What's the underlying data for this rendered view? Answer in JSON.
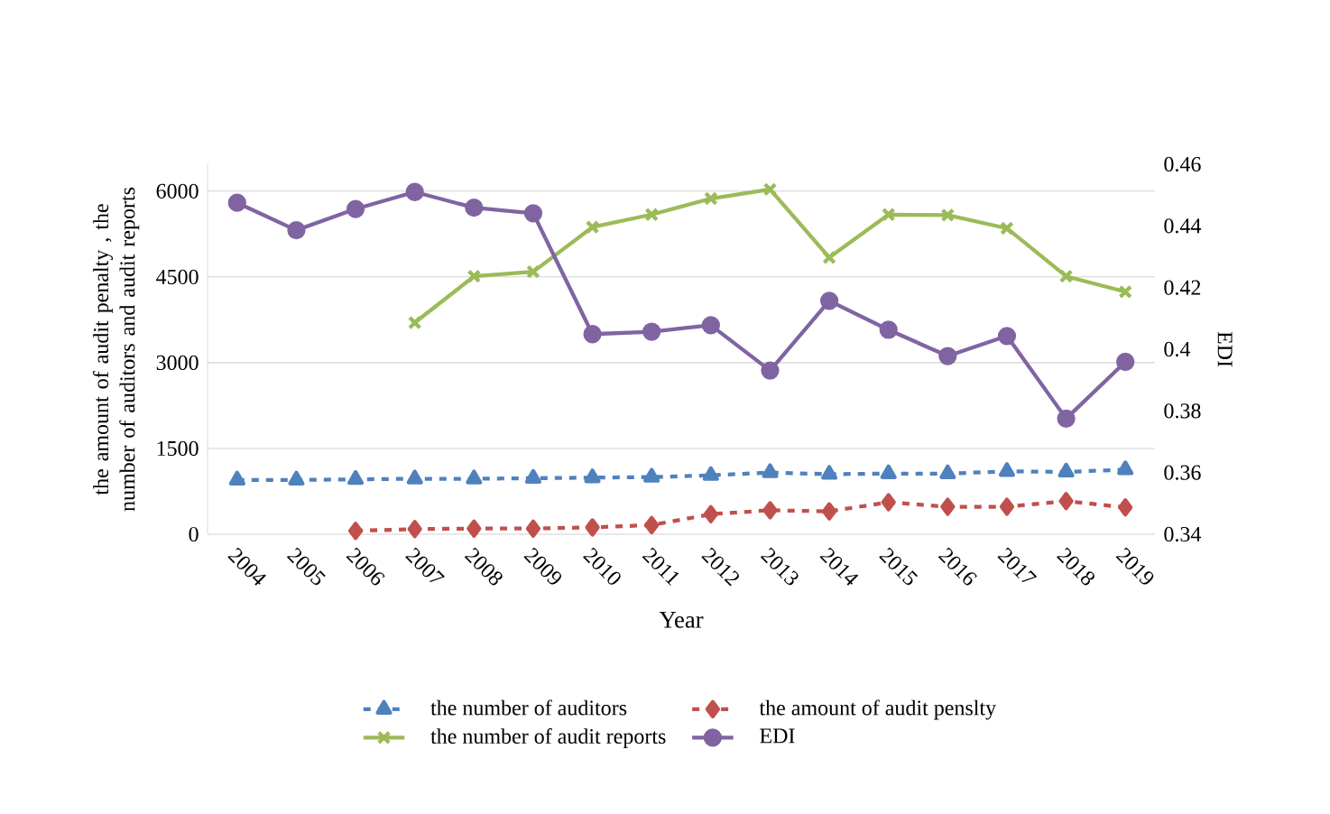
{
  "chart_data": {
    "type": "line",
    "categories": [
      "2004",
      "2005",
      "2006",
      "2007",
      "2008",
      "2009",
      "2010",
      "2011",
      "2012",
      "2013",
      "2014",
      "2015",
      "2016",
      "2017",
      "2018",
      "2019"
    ],
    "xlabel": "Year",
    "ylabel": "the amount of audit penalty , the number of auditors and audit reports",
    "y2label": "EDI",
    "ylim": [
      0,
      6470
    ],
    "yticks": [
      0,
      1500,
      3000,
      4500,
      6000
    ],
    "y2lim": [
      0.34,
      0.46
    ],
    "y2ticks": [
      0.34,
      0.36,
      0.38,
      0.4,
      0.42,
      0.44,
      0.46
    ],
    "grid": "y",
    "legend": "bottom",
    "series": [
      {
        "name": "the number of auditors",
        "color": "#4f81bd",
        "marker": "triangle",
        "line_style": "dashed",
        "values": [
          950,
          950,
          960,
          970,
          970,
          980,
          990,
          1000,
          1030,
          1080,
          1050,
          1060,
          1060,
          1100,
          1090,
          1130
        ]
      },
      {
        "name": "the amount of audit penslty",
        "color": "#c0504d",
        "marker": "diamond",
        "line_style": "dashed",
        "values": [
          null,
          null,
          60,
          90,
          100,
          100,
          120,
          160,
          350,
          420,
          400,
          560,
          480,
          480,
          580,
          470
        ]
      },
      {
        "name": "the number of audit reports",
        "color": "#9bbb59",
        "marker": "cross",
        "line_style": "solid",
        "values": [
          null,
          null,
          null,
          3700,
          4510,
          4590,
          5370,
          5590,
          5870,
          6030,
          4840,
          5590,
          5580,
          5350,
          4510,
          4240
        ]
      },
      {
        "name": "EDI",
        "color": "#8064a2",
        "marker": "circle",
        "line_style": "solid",
        "axis": "y2",
        "values": [
          0.4475,
          0.4386,
          0.4455,
          0.451,
          0.4459,
          0.4441,
          0.4049,
          0.4057,
          0.4078,
          0.3931,
          0.4157,
          0.4063,
          0.3978,
          0.4043,
          0.3775,
          0.3959
        ]
      }
    ]
  }
}
